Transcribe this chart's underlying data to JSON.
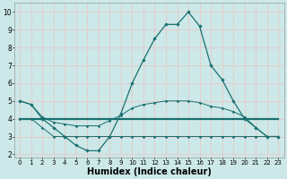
{
  "xlabel": "Humidex (Indice chaleur)",
  "background_color": "#cce8e8",
  "grid_color": "#e8c8c8",
  "line_color": "#1a7070",
  "xlim": [
    -0.5,
    23.5
  ],
  "ylim": [
    1.8,
    10.5
  ],
  "xticks": [
    0,
    1,
    2,
    3,
    4,
    5,
    6,
    7,
    8,
    9,
    10,
    11,
    12,
    13,
    14,
    15,
    16,
    17,
    18,
    19,
    20,
    21,
    22,
    23
  ],
  "yticks": [
    2,
    3,
    4,
    5,
    6,
    7,
    8,
    9,
    10
  ],
  "line1_y": [
    5.0,
    4.8,
    4.0,
    3.5,
    3.0,
    2.5,
    2.2,
    2.2,
    3.0,
    4.3,
    6.0,
    7.3,
    8.5,
    9.3,
    9.3,
    10.0,
    9.2,
    7.0,
    6.2,
    5.0,
    4.0,
    3.5,
    3.0,
    3.0
  ],
  "line2_y": [
    5.0,
    4.8,
    4.1,
    3.8,
    3.7,
    3.6,
    3.6,
    3.6,
    3.9,
    4.2,
    4.6,
    4.8,
    4.9,
    5.0,
    5.0,
    5.0,
    4.9,
    4.7,
    4.6,
    4.4,
    4.1,
    3.5,
    3.0,
    3.0
  ],
  "line3_y": [
    4.0,
    4.0,
    4.0,
    4.0,
    4.0,
    4.0,
    4.0,
    4.0,
    4.0,
    4.0,
    4.0,
    4.0,
    4.0,
    4.0,
    4.0,
    4.0,
    4.0,
    4.0,
    4.0,
    4.0,
    4.0,
    4.0,
    4.0,
    4.0
  ],
  "line4_y": [
    4.0,
    4.0,
    3.5,
    3.0,
    3.0,
    3.0,
    3.0,
    3.0,
    3.0,
    3.0,
    3.0,
    3.0,
    3.0,
    3.0,
    3.0,
    3.0,
    3.0,
    3.0,
    3.0,
    3.0,
    3.0,
    3.0,
    3.0,
    3.0
  ],
  "tick_fontsize": 5.5,
  "xlabel_fontsize": 7
}
